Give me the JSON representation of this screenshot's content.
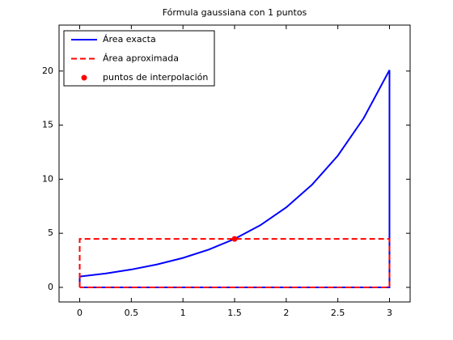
{
  "chart_data": {
    "type": "line",
    "title": "Fórmula gaussiana con 1 puntos",
    "series": [
      {
        "name": "Área exacta",
        "color": "#0000ff",
        "style": "solid",
        "x": [
          0,
          0,
          0.25,
          0.5,
          0.75,
          1,
          1.25,
          1.5,
          1.75,
          2,
          2.25,
          2.5,
          2.75,
          3,
          3,
          0
        ],
        "values": [
          0,
          1,
          1.28,
          1.65,
          2.12,
          2.72,
          3.49,
          4.48,
          5.75,
          7.39,
          9.49,
          12.18,
          15.64,
          20.09,
          0,
          0
        ]
      },
      {
        "name": "Área aproximada",
        "color": "#ff0000",
        "style": "dashed",
        "x": [
          0,
          0,
          3,
          3,
          0
        ],
        "values": [
          0,
          4.48,
          4.48,
          0,
          0
        ]
      },
      {
        "name": "puntos de interpolación",
        "color": "#ff0000",
        "style": "marker",
        "x": [
          1.5
        ],
        "values": [
          4.48
        ]
      }
    ],
    "xlim": [
      -0.2,
      3.2
    ],
    "xticks": [
      0,
      0.5,
      1,
      1.5,
      2,
      2.5,
      3
    ],
    "ylim": [
      -1.35,
      24.25
    ],
    "yticks": [
      0,
      5,
      10,
      15,
      20
    ],
    "grid": false,
    "legend": "upper-left"
  }
}
